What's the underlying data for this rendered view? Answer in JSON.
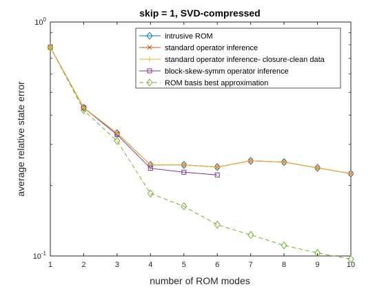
{
  "chart_data": {
    "type": "line",
    "title": "skip = 1, SVD-compressed",
    "xlabel": "number of ROM modes",
    "ylabel": "average relative state error",
    "xlim": [
      1,
      10
    ],
    "ylim": [
      0.1,
      1
    ],
    "yscale": "log",
    "x_ticks": [
      "1",
      "2",
      "3",
      "4",
      "5",
      "6",
      "7",
      "8",
      "9",
      "10"
    ],
    "y_ticks": [
      {
        "value": 1,
        "base": "10",
        "exp": "0"
      },
      {
        "value": 0.1,
        "base": "10",
        "exp": "-1"
      }
    ],
    "grid": false,
    "legend_position": "top-right",
    "series": [
      {
        "name": "intrusive ROM",
        "color": "#0072BD",
        "marker": "diamond",
        "dash": "solid",
        "x": [
          1,
          2,
          3,
          4,
          5,
          6,
          7,
          8,
          9,
          10
        ],
        "y": [
          0.78,
          0.43,
          0.335,
          0.245,
          0.245,
          0.24,
          0.255,
          0.252,
          0.238,
          0.225
        ]
      },
      {
        "name": "standard operator inference",
        "color": "#D95319",
        "marker": "x",
        "dash": "solid",
        "x": [
          1,
          2,
          3,
          4,
          5,
          6,
          7,
          8,
          9,
          10
        ],
        "y": [
          0.78,
          0.43,
          0.335,
          0.245,
          0.245,
          0.24,
          0.255,
          0.252,
          0.238,
          0.225
        ]
      },
      {
        "name": "standard operator inference- closure-clean data",
        "color": "#EDB120",
        "marker": "plus",
        "dash": "solid",
        "x": [
          1,
          2,
          3,
          4,
          5,
          6,
          7,
          8,
          9,
          10
        ],
        "y": [
          0.78,
          0.43,
          0.335,
          0.245,
          0.245,
          0.24,
          0.255,
          0.252,
          0.238,
          0.225
        ]
      },
      {
        "name": "block-skew-symm operator inference",
        "color": "#7E2F8E",
        "marker": "square",
        "dash": "solid",
        "x": [
          1,
          2,
          3,
          4,
          5,
          6
        ],
        "y": [
          0.78,
          0.43,
          0.33,
          0.237,
          0.228,
          0.222
        ]
      },
      {
        "name": "ROM basis best approximation",
        "color": "#77AC30",
        "marker": "diamond",
        "dash": "dashed",
        "x": [
          1,
          2,
          3,
          4,
          5,
          6,
          7,
          8,
          9,
          10
        ],
        "y": [
          0.78,
          0.42,
          0.31,
          0.185,
          0.163,
          0.136,
          0.123,
          0.111,
          0.103,
          0.097
        ]
      }
    ]
  }
}
